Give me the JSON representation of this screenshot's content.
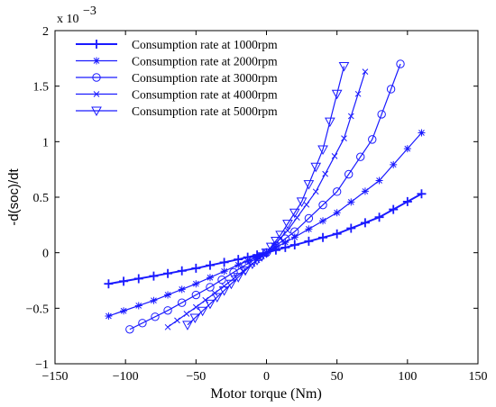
{
  "chart_data": {
    "type": "line",
    "title": "",
    "xlabel": "Motor torque (Nm)",
    "ylabel": "-d(soc)/dt",
    "xlim": [
      -150,
      150
    ],
    "ylim": [
      -1,
      2
    ],
    "xticks": [
      -150,
      -100,
      -50,
      0,
      50,
      100,
      150
    ],
    "yticks": [
      -1,
      -0.5,
      0,
      0.5,
      1,
      1.5,
      2
    ],
    "xtick_labels": [
      "−150",
      "−100",
      "−50",
      "0",
      "50",
      "100",
      "150"
    ],
    "ytick_labels": [
      "−1",
      "−0.5",
      "0",
      "0.5",
      "1",
      "1.5",
      "2"
    ],
    "y_exponent_base": "x 10",
    "y_exponent_power": "−3",
    "grid": false,
    "legend_position": "top-left",
    "series": [
      {
        "name": "Consumption rate at 1000rpm",
        "marker": "plus",
        "color": "#1a1aff",
        "x": [
          -112,
          -80,
          -50,
          -20,
          0,
          20,
          50,
          80,
          110
        ],
        "y": [
          -0.28,
          -0.21,
          -0.14,
          -0.06,
          0,
          0.07,
          0.17,
          0.32,
          0.53
        ]
      },
      {
        "name": "Consumption rate at 2000rpm",
        "marker": "star",
        "color": "#1a1aff",
        "x": [
          -112,
          -80,
          -50,
          -20,
          0,
          20,
          50,
          80,
          110
        ],
        "y": [
          -0.57,
          -0.43,
          -0.28,
          -0.11,
          0,
          0.14,
          0.36,
          0.65,
          1.08
        ]
      },
      {
        "name": "Consumption rate at 3000rpm",
        "marker": "circle",
        "color": "#1a1aff",
        "x": [
          -97,
          -70,
          -40,
          -15,
          0,
          20,
          50,
          75,
          95
        ],
        "y": [
          -0.69,
          -0.52,
          -0.31,
          -0.11,
          0,
          0.19,
          0.55,
          1.02,
          1.7
        ]
      },
      {
        "name": "Consumption rate at 4000rpm",
        "marker": "x",
        "color": "#1a1aff",
        "x": [
          -70,
          -50,
          -30,
          -10,
          0,
          15,
          35,
          55,
          70
        ],
        "y": [
          -0.67,
          -0.49,
          -0.3,
          -0.1,
          0,
          0.2,
          0.55,
          1.03,
          1.63
        ]
      },
      {
        "name": "Consumption rate at 5000rpm",
        "marker": "triangle-down",
        "color": "#1a1aff",
        "x": [
          -56,
          -40,
          -25,
          -10,
          0,
          10,
          25,
          40,
          55
        ],
        "y": [
          -0.65,
          -0.46,
          -0.28,
          -0.1,
          0,
          0.16,
          0.46,
          0.93,
          1.68
        ]
      }
    ]
  }
}
